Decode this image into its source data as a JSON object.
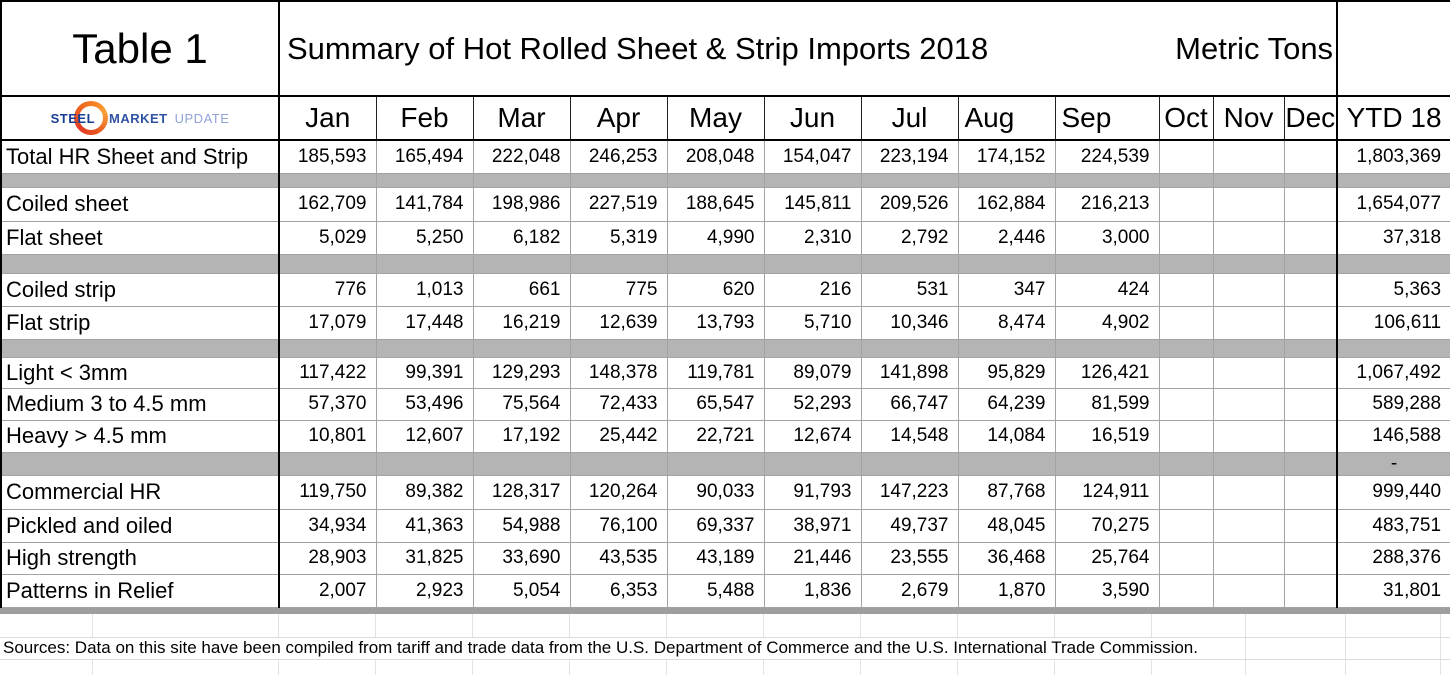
{
  "header": {
    "corner_label": "Table 1",
    "title": "Summary of Hot Rolled Sheet & Strip Imports 2018",
    "units_label": "Metric Tons"
  },
  "logo": {
    "part1": "STEEL",
    "part2": "MARKET",
    "part3": "UPDATE"
  },
  "columns": [
    "Jan",
    "Feb",
    "Mar",
    "Apr",
    "May",
    "Jun",
    "Jul",
    "Aug",
    "Sep",
    "Oct",
    "Nov",
    "Dec",
    "YTD 18"
  ],
  "rows": [
    {
      "type": "data",
      "label": "Total HR Sheet and Strip",
      "values": [
        "185,593",
        "165,494",
        "222,048",
        "246,253",
        "208,048",
        "154,047",
        "223,194",
        "174,152",
        "224,539",
        "",
        "",
        "",
        "1,803,369"
      ]
    },
    {
      "type": "separator",
      "ytd_value": ""
    },
    {
      "type": "data",
      "label": "Coiled sheet",
      "values": [
        "162,709",
        "141,784",
        "198,986",
        "227,519",
        "188,645",
        "145,811",
        "209,526",
        "162,884",
        "216,213",
        "",
        "",
        "",
        "1,654,077"
      ]
    },
    {
      "type": "data",
      "label": "Flat sheet",
      "values": [
        "5,029",
        "5,250",
        "6,182",
        "5,319",
        "4,990",
        "2,310",
        "2,792",
        "2,446",
        "3,000",
        "",
        "",
        "",
        "37,318"
      ]
    },
    {
      "type": "separator",
      "ytd_value": ""
    },
    {
      "type": "data",
      "label": "Coiled strip",
      "values": [
        "776",
        "1,013",
        "661",
        "775",
        "620",
        "216",
        "531",
        "347",
        "424",
        "",
        "",
        "",
        "5,363"
      ]
    },
    {
      "type": "data",
      "label": "Flat strip",
      "values": [
        "17,079",
        "17,448",
        "16,219",
        "12,639",
        "13,793",
        "5,710",
        "10,346",
        "8,474",
        "4,902",
        "",
        "",
        "",
        "106,611"
      ]
    },
    {
      "type": "separator",
      "ytd_value": ""
    },
    {
      "type": "data",
      "label": "Light < 3mm",
      "values": [
        "117,422",
        "99,391",
        "129,293",
        "148,378",
        "119,781",
        "89,079",
        "141,898",
        "95,829",
        "126,421",
        "",
        "",
        "",
        "1,067,492"
      ]
    },
    {
      "type": "data",
      "label": "Medium 3 to 4.5 mm",
      "values": [
        "57,370",
        "53,496",
        "75,564",
        "72,433",
        "65,547",
        "52,293",
        "66,747",
        "64,239",
        "81,599",
        "",
        "",
        "",
        "589,288"
      ]
    },
    {
      "type": "data",
      "label": "Heavy > 4.5 mm",
      "values": [
        "10,801",
        "12,607",
        "17,192",
        "25,442",
        "22,721",
        "12,674",
        "14,548",
        "14,084",
        "16,519",
        "",
        "",
        "",
        "146,588"
      ]
    },
    {
      "type": "separator",
      "ytd_value": "-"
    },
    {
      "type": "data",
      "label": "Commercial HR",
      "values": [
        "119,750",
        "89,382",
        "128,317",
        "120,264",
        "90,033",
        "91,793",
        "147,223",
        "87,768",
        "124,911",
        "",
        "",
        "",
        "999,440"
      ]
    },
    {
      "type": "data",
      "label": "Pickled and oiled",
      "values": [
        "34,934",
        "41,363",
        "54,988",
        "76,100",
        "69,337",
        "38,971",
        "49,737",
        "48,045",
        "70,275",
        "",
        "",
        "",
        "483,751"
      ]
    },
    {
      "type": "data",
      "label": "High strength",
      "values": [
        "28,903",
        "31,825",
        "33,690",
        "43,535",
        "43,189",
        "21,446",
        "23,555",
        "36,468",
        "25,764",
        "",
        "",
        "",
        "288,376"
      ]
    },
    {
      "type": "data",
      "label": "Patterns in Relief",
      "values": [
        "2,007",
        "2,923",
        "5,054",
        "6,353",
        "5,488",
        "1,836",
        "2,679",
        "1,870",
        "3,590",
        "",
        "",
        "",
        "31,801"
      ]
    }
  ],
  "footer": {
    "sources": "Sources: Data on this site have been compiled from tariff and trade data from the U.S. Department of Commerce and the U.S. International Trade Commission."
  },
  "colors": {
    "separator_gray": "#b4b4b4",
    "bottom_bar_gray": "#9e9e9e",
    "logo_steel_blue": "#1a3e94",
    "logo_market_blue": "#3053a4",
    "logo_update_blue": "#8fa3d9",
    "logo_swoosh_orange": "#f58220",
    "logo_swoosh_red": "#e23b24"
  }
}
